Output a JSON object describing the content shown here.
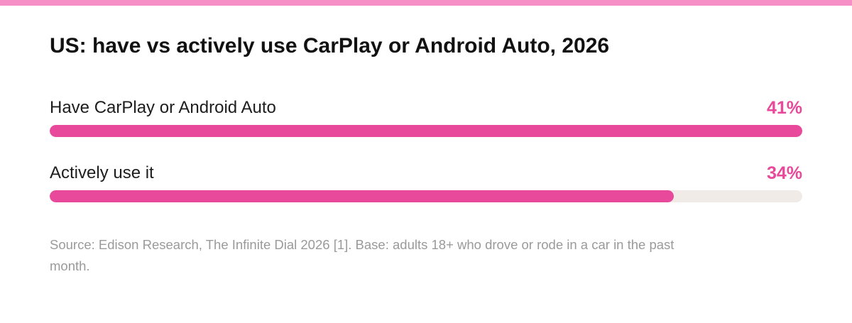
{
  "colors": {
    "accent": "#e8499a",
    "stripe": "#f78fc7",
    "track": "#f1ebe8",
    "title": "#111111",
    "source": "#9a9a9a"
  },
  "chart_data": {
    "type": "bar",
    "orientation": "horizontal",
    "title": "US: have vs actively use CarPlay or Android Auto, 2026",
    "categories": [
      "Have CarPlay or Android Auto",
      "Actively use it"
    ],
    "values": [
      41,
      34
    ],
    "value_labels": [
      "41%",
      "34%"
    ],
    "xlim": [
      0,
      41
    ],
    "grid": false,
    "legend": "none"
  },
  "source": "Source: Edison Research, The Infinite Dial 2026 [1]. Base: adults 18+ who drove or rode in a car in the past month."
}
